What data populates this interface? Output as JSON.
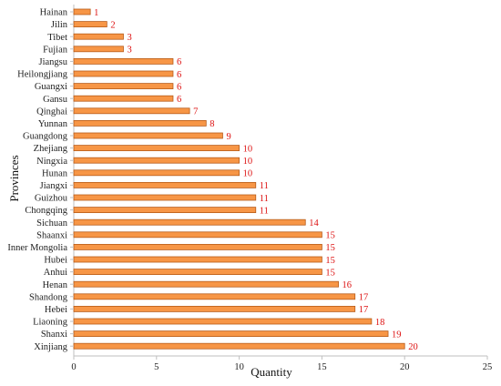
{
  "chart_data": {
    "type": "bar",
    "orientation": "horizontal",
    "xlabel": "Quantity",
    "ylabel": "Provinces",
    "xlim": [
      0,
      25
    ],
    "xticks": [
      0,
      5,
      10,
      15,
      20,
      25
    ],
    "grid": false,
    "bar_color": "#f79646",
    "bar_edge_color": "#b85c1a",
    "label_color": "#dd1111",
    "categories": [
      "Hainan",
      "Jilin",
      "Tibet",
      "Fujian",
      "Jiangsu",
      "Heilongjiang",
      "Guangxi",
      "Gansu",
      "Qinghai",
      "Yunnan",
      "Guangdong",
      "Zhejiang",
      "Ningxia",
      "Hunan",
      "Jiangxi",
      "Guizhou",
      "Chongqing",
      "Sichuan",
      "Shaanxi",
      "Inner Mongolia",
      "Hubei",
      "Anhui",
      "Henan",
      "Shandong",
      "Hebei",
      "Liaoning",
      "Shanxi",
      "Xinjiang"
    ],
    "values": [
      1,
      2,
      3,
      3,
      6,
      6,
      6,
      6,
      7,
      8,
      9,
      10,
      10,
      10,
      11,
      11,
      11,
      14,
      15,
      15,
      15,
      15,
      16,
      17,
      17,
      18,
      19,
      20
    ]
  }
}
